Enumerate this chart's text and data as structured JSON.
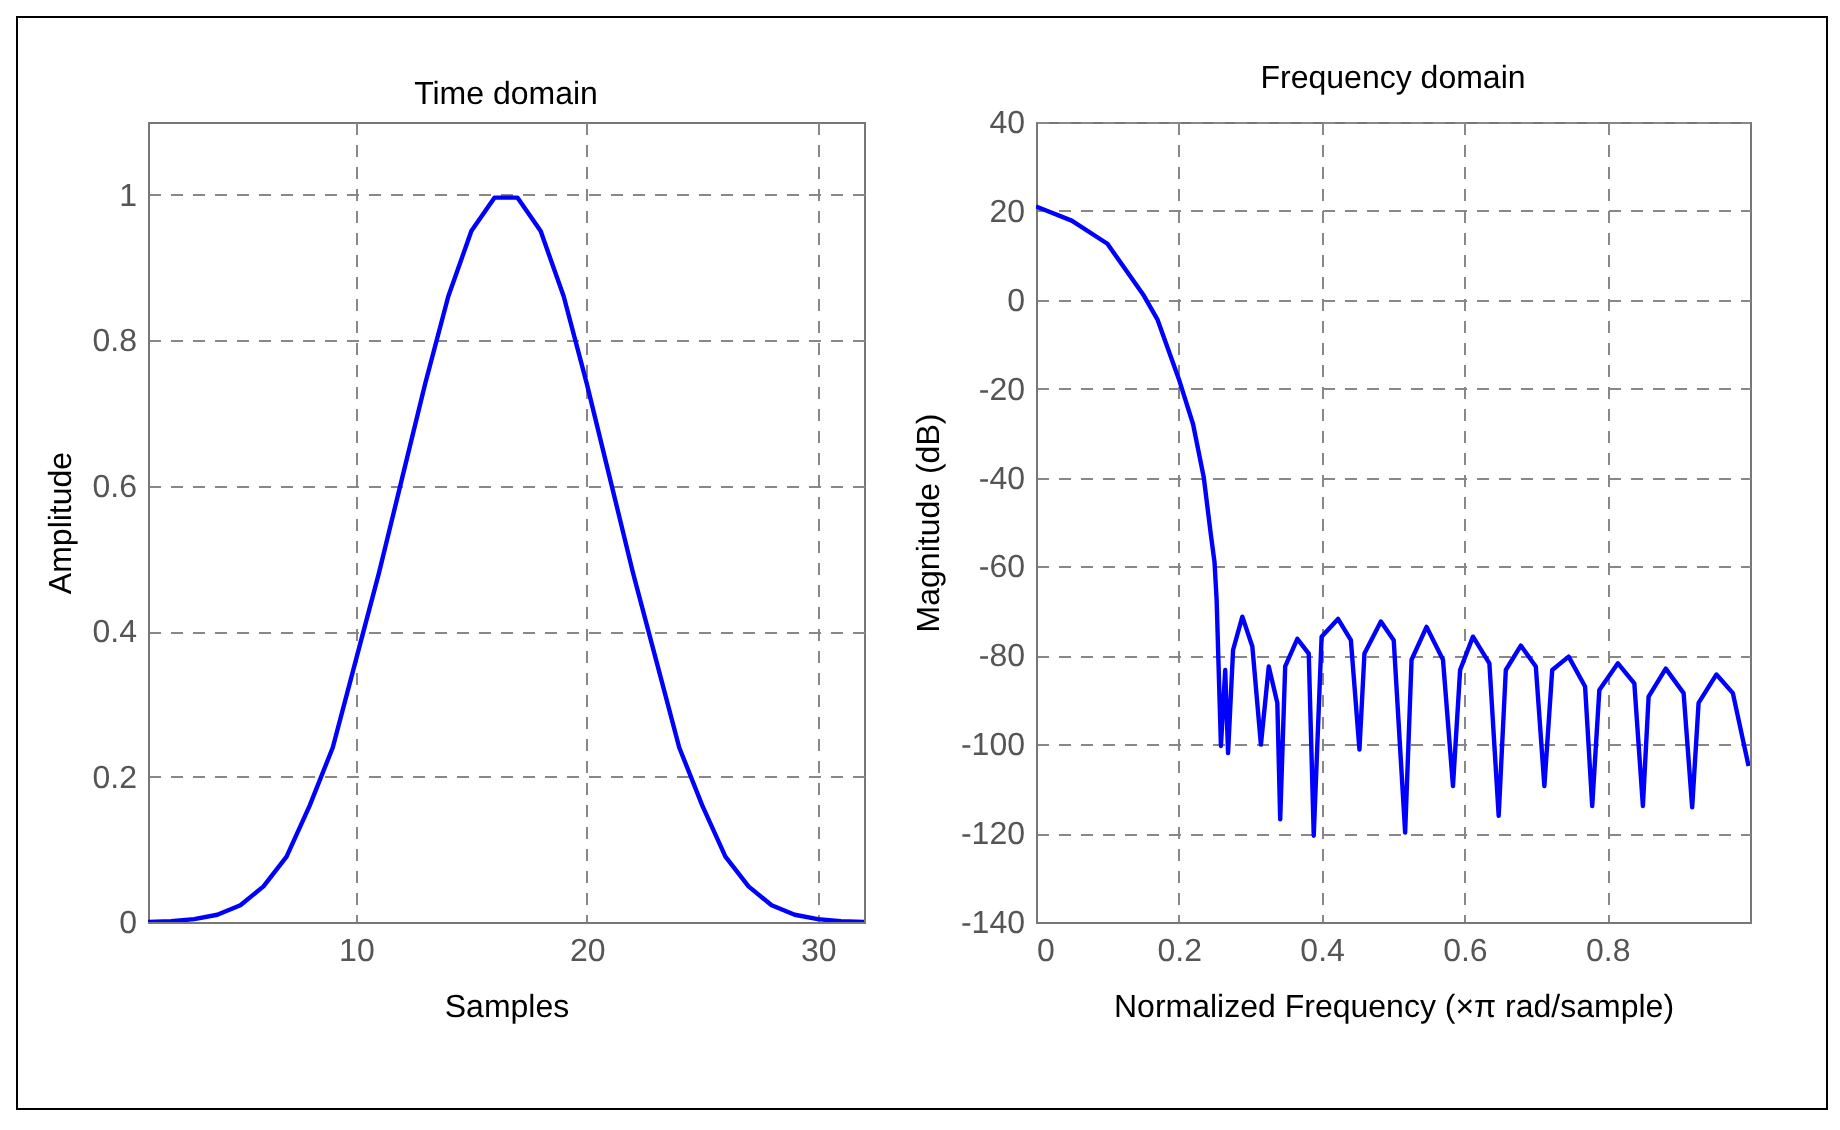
{
  "chart_data": [
    {
      "type": "line",
      "title": "Time domain",
      "xlabel": "Samples",
      "ylabel": "Amplitude",
      "x": [
        1,
        2,
        3,
        4,
        5,
        6,
        7,
        8,
        9,
        10,
        11,
        12,
        13,
        14,
        15,
        16,
        17,
        18,
        19,
        20,
        21,
        22,
        23,
        24,
        25,
        26,
        27,
        28,
        29,
        30,
        31,
        32
      ],
      "series": [
        {
          "color": "#0000ff",
          "values": [
            0,
            0.001,
            0.004,
            0.01,
            0.023,
            0.049,
            0.09,
            0.16,
            0.24,
            0.36,
            0.48,
            0.61,
            0.74,
            0.86,
            0.95,
            0.996,
            0.996,
            0.95,
            0.86,
            0.74,
            0.61,
            0.48,
            0.36,
            0.24,
            0.16,
            0.09,
            0.049,
            0.023,
            0.01,
            0.004,
            0.001,
            0
          ]
        }
      ],
      "xlim": [
        1,
        32
      ],
      "ylim": [
        0,
        1.1
      ],
      "xticks": [
        10,
        20,
        30
      ],
      "yticks": [
        0,
        0.2,
        0.4,
        0.6,
        0.8,
        1
      ],
      "grid": true
    },
    {
      "type": "line",
      "title": "Frequency domain",
      "xlabel": "Normalized Frequency  (×π rad/sample)",
      "ylabel": "Magnitude (dB)",
      "x": [
        0,
        0.05,
        0.1,
        0.15,
        0.17,
        0.2,
        0.22,
        0.235,
        0.245,
        0.25,
        0.253,
        0.259,
        0.265,
        0.269,
        0.276,
        0.289,
        0.303,
        0.315,
        0.326,
        0.338,
        0.342,
        0.349,
        0.366,
        0.382,
        0.389,
        0.4,
        0.423,
        0.441,
        0.453,
        0.46,
        0.483,
        0.501,
        0.517,
        0.526,
        0.547,
        0.57,
        0.584,
        0.594,
        0.612,
        0.635,
        0.648,
        0.658,
        0.679,
        0.7,
        0.712,
        0.723,
        0.746,
        0.769,
        0.779,
        0.789,
        0.815,
        0.838,
        0.85,
        0.858,
        0.882,
        0.907,
        0.919,
        0.928,
        0.953,
        0.976,
        0.998
      ],
      "series": [
        {
          "color": "#0000ff",
          "values": [
            21,
            17.8,
            12.6,
            1.2,
            -4.4,
            -17.8,
            -28,
            -40,
            -53,
            -59,
            -67.6,
            -100.4,
            -83.3,
            -102,
            -78.8,
            -71.3,
            -78,
            -100.1,
            -82.5,
            -90.7,
            -116.9,
            -82.5,
            -76.3,
            -79.6,
            -120.6,
            -75.8,
            -71.8,
            -76.6,
            -101.2,
            -79.6,
            -72.4,
            -76.6,
            -119.9,
            -81,
            -73.6,
            -81,
            -109.4,
            -83.3,
            -75.8,
            -81.8,
            -116.1,
            -83.3,
            -77.8,
            -82.5,
            -109.4,
            -83.3,
            -80.3,
            -87,
            -113.9,
            -87.8,
            -81.8,
            -86.3,
            -113.9,
            -89.3,
            -83,
            -88.5,
            -114.2,
            -90.7,
            -84.3,
            -88.5,
            -104.9
          ]
        }
      ],
      "xlim": [
        0,
        1
      ],
      "ylim": [
        -140,
        40
      ],
      "xticks": [
        0,
        0.2,
        0.4,
        0.6,
        0.8
      ],
      "yticks": [
        -140,
        -120,
        -100,
        -80,
        -60,
        -40,
        -20,
        0,
        20,
        40
      ],
      "grid": true
    }
  ]
}
